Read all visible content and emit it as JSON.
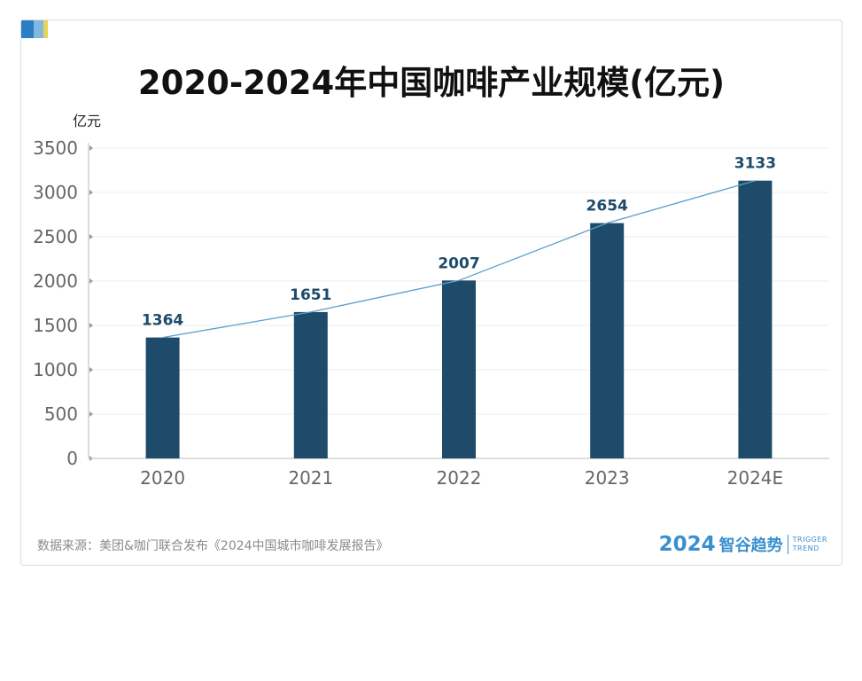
{
  "title": "2020-2024年中国咖啡产业规模(亿元)",
  "unit_label": "亿元",
  "source": "数据来源：美团&咖门联合发布《2024中国城市咖啡发展报告》",
  "brand": {
    "year": "2024",
    "name": "智谷趋势",
    "en_line1": "TRIGGER",
    "en_line2": "TREND"
  },
  "colors": {
    "bar": "#1f4b6b",
    "line": "#5b9ec9",
    "brand": "#3a8fcf",
    "corner": [
      "#2a7fc4",
      "#7fb8e0",
      "#e8d35a"
    ]
  },
  "chart_data": {
    "type": "bar",
    "categories": [
      "2020",
      "2021",
      "2022",
      "2023",
      "2024E"
    ],
    "values": [
      1364,
      1651,
      2007,
      2654,
      3133
    ],
    "data_labels": [
      "1364",
      "1651",
      "2007",
      "2654",
      "3133"
    ],
    "yticks": [
      0,
      500,
      1000,
      1500,
      2000,
      2500,
      3000,
      3500
    ],
    "ylim": [
      0,
      3500
    ],
    "ylabel": "亿元",
    "trend_line": true,
    "grid": true
  }
}
